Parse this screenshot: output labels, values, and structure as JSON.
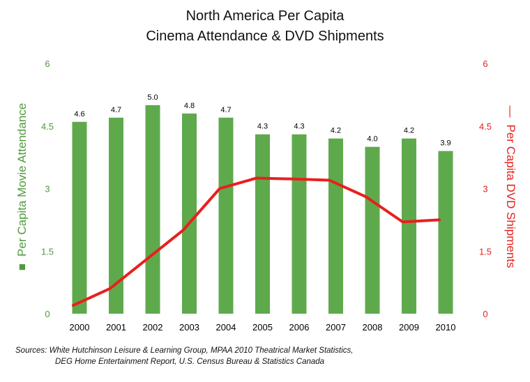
{
  "chart_data": {
    "type": "bar+line",
    "title": [
      "North America Per Capita",
      "Cinema Attendance & DVD Shipments"
    ],
    "categories": [
      "2000",
      "2001",
      "2002",
      "2003",
      "2004",
      "2005",
      "2006",
      "2007",
      "2008",
      "2009",
      "2010"
    ],
    "series": [
      {
        "name": "Per Capita Movie Attendance",
        "type": "bar",
        "axis": "left",
        "color": "#5fa94d",
        "values": [
          4.6,
          4.7,
          5.0,
          4.8,
          4.7,
          4.3,
          4.3,
          4.2,
          4.0,
          4.2,
          3.9
        ],
        "labels": [
          "4.6",
          "4.7",
          "5.0",
          "4.8",
          "4.7",
          "4.3",
          "4.3",
          "4.2",
          "4.0",
          "4.2",
          "3.9"
        ]
      },
      {
        "name": "Per Capita DVD Shipments",
        "type": "line",
        "axis": "right",
        "color": "#e8201c",
        "values": [
          0.2,
          0.6,
          1.3,
          2.0,
          3.0,
          3.25,
          3.23,
          3.2,
          2.8,
          2.2,
          2.25
        ]
      }
    ],
    "y_left": {
      "ticks": [
        "0",
        "1.5",
        "3",
        "4.5",
        "6"
      ],
      "ylim": [
        0,
        6
      ],
      "color": "#4f9a3d"
    },
    "y_right": {
      "ticks": [
        "0",
        "1.5",
        "3",
        "4.5",
        "6"
      ],
      "ylim": [
        0,
        6
      ],
      "color": "#e8201c"
    },
    "legend_markers": {
      "left": "■",
      "right": "—"
    },
    "grid": false
  },
  "source": {
    "line1": "Sources:  White Hutchinson Leisure & Learning Group, MPAA  2010 Theatrical Market Statistics,",
    "line2": "DEG Home Entertainment Report, U.S. Census Bureau & Statistics Canada"
  }
}
